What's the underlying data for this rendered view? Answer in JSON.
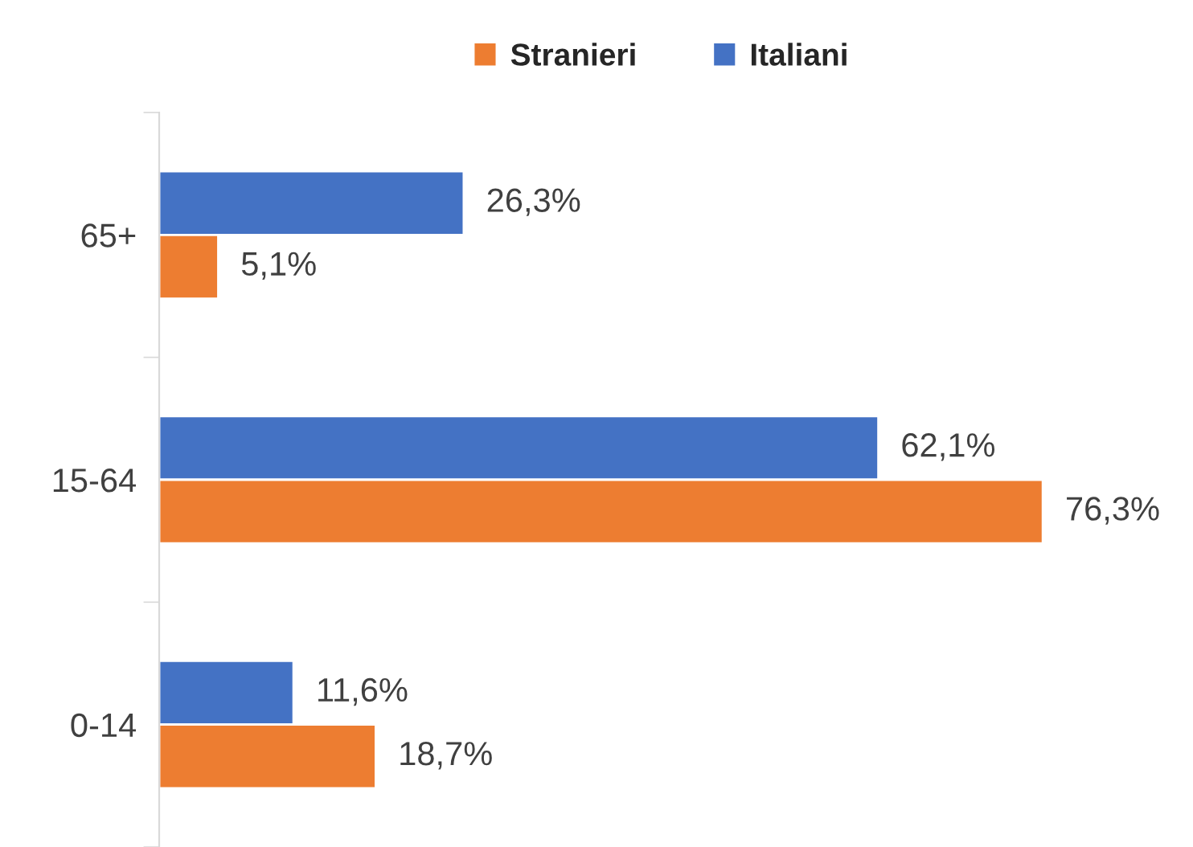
{
  "chart_data": {
    "type": "bar",
    "orientation": "horizontal",
    "categories": [
      "65+",
      "15-64",
      "0-14"
    ],
    "series": [
      {
        "name": "Italiani",
        "color": "#4472c4",
        "values": [
          26.3,
          62.1,
          11.6
        ],
        "value_labels": [
          "26,3%",
          "62,1%",
          "11,6%"
        ]
      },
      {
        "name": "Stranieri",
        "color": "#ed7d31",
        "values": [
          5.1,
          76.3,
          18.7
        ],
        "value_labels": [
          "5,1%",
          "76,3%",
          "18,7%"
        ]
      }
    ],
    "legend": "top"
  }
}
